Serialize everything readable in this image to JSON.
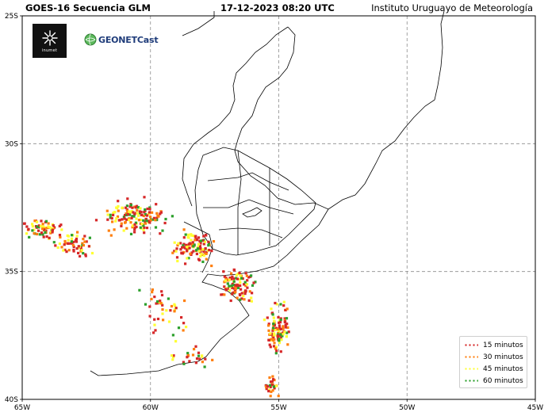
{
  "header": {
    "left": "GOES-16 Secuencia GLM",
    "center": "17-12-2023  08:20 UTC",
    "right": "Instituto Uruguayo de Meteorología"
  },
  "logos": {
    "inumet_label": "inumet",
    "geonetcast_label": "GEONETCast"
  },
  "axes": {
    "y_ticks": [
      "25S",
      "30S",
      "35S",
      "40S"
    ],
    "x_ticks": [
      "65W",
      "60W",
      "55W",
      "50W",
      "45W"
    ],
    "lon_range": [
      -65,
      -45
    ],
    "lat_range": [
      -40,
      -25
    ],
    "grid": "dashed"
  },
  "legend": {
    "placement": "bottom-right",
    "items": [
      {
        "label": "15 minutos",
        "color": "#d62728"
      },
      {
        "label": "30 minutos",
        "color": "#ff7f0e"
      },
      {
        "label": "45 minutos",
        "color": "#ffff33"
      },
      {
        "label": "60 minutos",
        "color": "#2ca02c"
      }
    ]
  },
  "lightning_clusters": [
    {
      "lon_center": -64.2,
      "lat_center": -33.3,
      "lon_spread": 1.0,
      "lat_spread": 0.5,
      "count": 70
    },
    {
      "lon_center": -63.0,
      "lat_center": -33.9,
      "lon_spread": 0.9,
      "lat_spread": 0.6,
      "count": 60
    },
    {
      "lon_center": -60.6,
      "lat_center": -32.8,
      "lon_spread": 1.8,
      "lat_spread": 0.9,
      "count": 150
    },
    {
      "lon_center": -58.5,
      "lat_center": -34.0,
      "lon_spread": 1.2,
      "lat_spread": 0.9,
      "count": 110
    },
    {
      "lon_center": -56.7,
      "lat_center": -35.5,
      "lon_spread": 1.0,
      "lat_spread": 0.9,
      "count": 100
    },
    {
      "lon_center": -55.1,
      "lat_center": -37.2,
      "lon_spread": 0.6,
      "lat_spread": 1.2,
      "count": 110
    },
    {
      "lon_center": -55.3,
      "lat_center": -39.4,
      "lon_spread": 0.4,
      "lat_spread": 0.5,
      "count": 30
    },
    {
      "lon_center": -59.5,
      "lat_center": -36.5,
      "lon_spread": 1.5,
      "lat_spread": 1.4,
      "count": 45
    },
    {
      "lon_center": -58.5,
      "lat_center": -38.3,
      "lon_spread": 1.3,
      "lat_spread": 0.5,
      "count": 25
    }
  ]
}
